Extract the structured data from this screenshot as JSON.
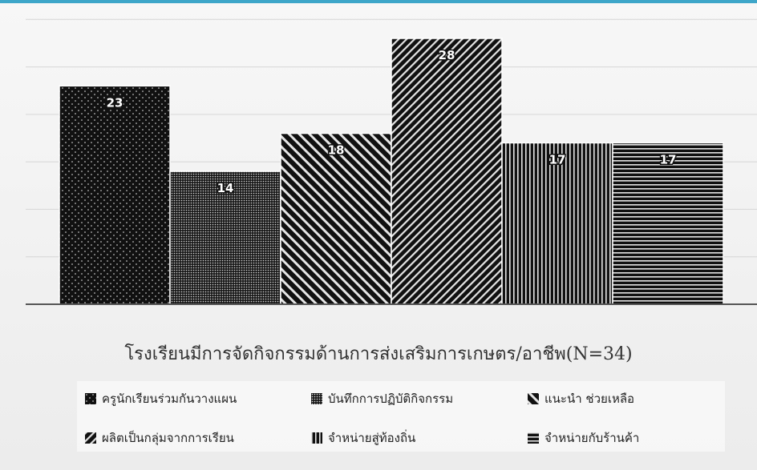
{
  "chart_data": {
    "type": "bar",
    "title": "โรงเรียนมีการจัดกิจกรรมด้านการส่งเสริมการเกษตร/อาชีพ(N=34)",
    "xlabel": "",
    "ylabel": "",
    "ylim": [
      0,
      30
    ],
    "grid": true,
    "legend_position": "bottom",
    "series": [
      {
        "name": "ครูนักเรียนร่วมกันวางแผน",
        "values": [
          23
        ],
        "pattern": "dots-dark"
      },
      {
        "name": "บันทึกการปฏิบัติกิจกรรม",
        "values": [
          14
        ],
        "pattern": "dots-dense"
      },
      {
        "name": "แนะนำ ช่วยเหลือ",
        "values": [
          18
        ],
        "pattern": "diagonal-back"
      },
      {
        "name": "ผลิตเป็นกลุ่มจากการเรียน",
        "values": [
          28
        ],
        "pattern": "diagonal-forward"
      },
      {
        "name": "จำหน่ายสู่ท้องถิ่น",
        "values": [
          17
        ],
        "pattern": "vertical-lines"
      },
      {
        "name": "จำหน่ายกับร้านค้า",
        "values": [
          17
        ],
        "pattern": "horizontal-lines"
      }
    ]
  }
}
